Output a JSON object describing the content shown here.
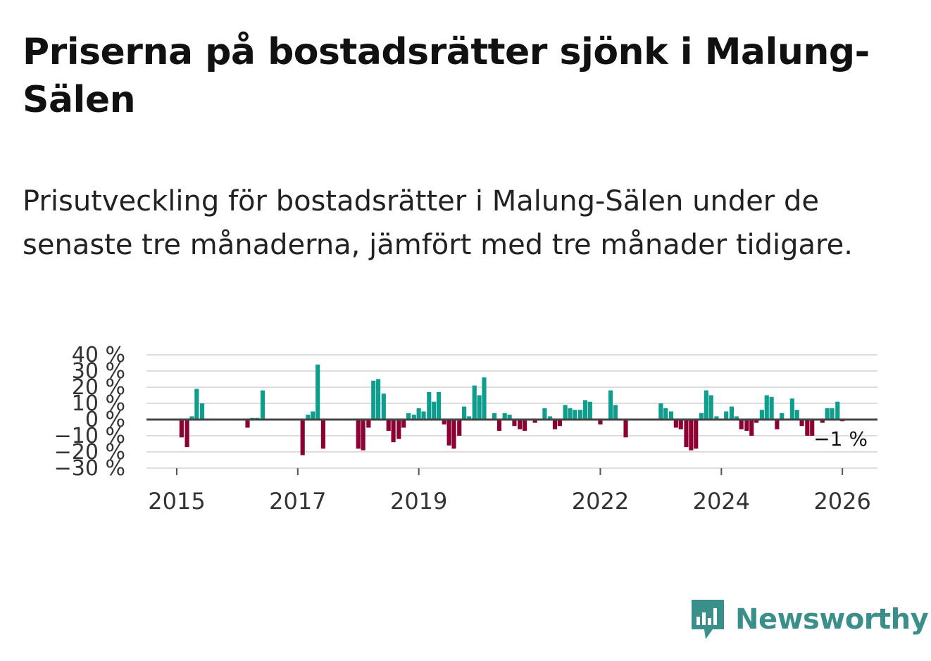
{
  "header": {
    "title": "Priserna på bostadsrätter sjönk i Malung-Sälen",
    "subtitle": "Prisutveckling för bostadsrätter i Malung-Sälen under de senaste tre månaderna, jämfört med tre månader tidigare."
  },
  "brand": {
    "name": "Newsworthy",
    "color": "#3a8f8a"
  },
  "colors": {
    "positive": "#0f9e8e",
    "negative": "#8c0033",
    "grid": "#dddddd",
    "zero": "#444444"
  },
  "chart_data": {
    "type": "bar",
    "ylim": [
      -30,
      40
    ],
    "y_ticks": [
      40,
      30,
      20,
      10,
      0,
      -10,
      -20,
      -30
    ],
    "y_tick_labels": [
      "40 %",
      "30 %",
      "20 %",
      "10 %",
      "0 %",
      "−10 %",
      "−20 %",
      "−30 %"
    ],
    "x_ticks": [
      2015,
      2017,
      2019,
      2022,
      2024,
      2026
    ],
    "x_tick_labels": [
      "2015",
      "2017",
      "2019",
      "2022",
      "2024",
      "2026"
    ],
    "x_range": [
      2014.5,
      2026.58
    ],
    "last_value_label": "−1 %",
    "series": [
      {
        "x": 2015.08,
        "y": -11
      },
      {
        "x": 2015.17,
        "y": -17
      },
      {
        "x": 2015.25,
        "y": 2
      },
      {
        "x": 2015.33,
        "y": 19
      },
      {
        "x": 2015.42,
        "y": 10
      },
      {
        "x": 2016.17,
        "y": -5
      },
      {
        "x": 2016.25,
        "y": 1
      },
      {
        "x": 2016.33,
        "y": 1
      },
      {
        "x": 2016.42,
        "y": 18
      },
      {
        "x": 2017.08,
        "y": -22
      },
      {
        "x": 2017.17,
        "y": 3
      },
      {
        "x": 2017.25,
        "y": 5
      },
      {
        "x": 2017.33,
        "y": 34
      },
      {
        "x": 2017.42,
        "y": -18
      },
      {
        "x": 2018.0,
        "y": -18
      },
      {
        "x": 2018.08,
        "y": -19
      },
      {
        "x": 2018.17,
        "y": -5
      },
      {
        "x": 2018.25,
        "y": 24
      },
      {
        "x": 2018.33,
        "y": 25
      },
      {
        "x": 2018.42,
        "y": 16
      },
      {
        "x": 2018.5,
        "y": -7
      },
      {
        "x": 2018.58,
        "y": -14
      },
      {
        "x": 2018.67,
        "y": -12
      },
      {
        "x": 2018.75,
        "y": -5
      },
      {
        "x": 2018.83,
        "y": 4
      },
      {
        "x": 2018.92,
        "y": 3
      },
      {
        "x": 2019.0,
        "y": 7
      },
      {
        "x": 2019.08,
        "y": 5
      },
      {
        "x": 2019.17,
        "y": 17
      },
      {
        "x": 2019.25,
        "y": 11
      },
      {
        "x": 2019.33,
        "y": 17
      },
      {
        "x": 2019.42,
        "y": -3
      },
      {
        "x": 2019.5,
        "y": -16
      },
      {
        "x": 2019.58,
        "y": -18
      },
      {
        "x": 2019.67,
        "y": -10
      },
      {
        "x": 2019.75,
        "y": 8
      },
      {
        "x": 2019.83,
        "y": 2
      },
      {
        "x": 2019.92,
        "y": 21
      },
      {
        "x": 2020.0,
        "y": 15
      },
      {
        "x": 2020.08,
        "y": 26
      },
      {
        "x": 2020.25,
        "y": 4
      },
      {
        "x": 2020.33,
        "y": -7
      },
      {
        "x": 2020.42,
        "y": 4
      },
      {
        "x": 2020.5,
        "y": 3
      },
      {
        "x": 2020.58,
        "y": -4
      },
      {
        "x": 2020.67,
        "y": -6
      },
      {
        "x": 2020.75,
        "y": -7
      },
      {
        "x": 2020.92,
        "y": -2
      },
      {
        "x": 2021.08,
        "y": 7
      },
      {
        "x": 2021.17,
        "y": 2
      },
      {
        "x": 2021.25,
        "y": -6
      },
      {
        "x": 2021.33,
        "y": -4
      },
      {
        "x": 2021.42,
        "y": 9
      },
      {
        "x": 2021.5,
        "y": 7
      },
      {
        "x": 2021.58,
        "y": 6
      },
      {
        "x": 2021.67,
        "y": 6
      },
      {
        "x": 2021.75,
        "y": 12
      },
      {
        "x": 2021.83,
        "y": 11
      },
      {
        "x": 2022.0,
        "y": -3
      },
      {
        "x": 2022.17,
        "y": 18
      },
      {
        "x": 2022.25,
        "y": 9
      },
      {
        "x": 2022.42,
        "y": -11
      },
      {
        "x": 2023.0,
        "y": 10
      },
      {
        "x": 2023.08,
        "y": 7
      },
      {
        "x": 2023.17,
        "y": 5
      },
      {
        "x": 2023.25,
        "y": -5
      },
      {
        "x": 2023.33,
        "y": -6
      },
      {
        "x": 2023.42,
        "y": -17
      },
      {
        "x": 2023.5,
        "y": -19
      },
      {
        "x": 2023.58,
        "y": -18
      },
      {
        "x": 2023.67,
        "y": 4
      },
      {
        "x": 2023.75,
        "y": 18
      },
      {
        "x": 2023.83,
        "y": 15
      },
      {
        "x": 2023.92,
        "y": 2
      },
      {
        "x": 2024.08,
        "y": 5
      },
      {
        "x": 2024.17,
        "y": 8
      },
      {
        "x": 2024.25,
        "y": 2
      },
      {
        "x": 2024.33,
        "y": -6
      },
      {
        "x": 2024.42,
        "y": -7
      },
      {
        "x": 2024.5,
        "y": -10
      },
      {
        "x": 2024.58,
        "y": -2
      },
      {
        "x": 2024.67,
        "y": 6
      },
      {
        "x": 2024.75,
        "y": 15
      },
      {
        "x": 2024.83,
        "y": 14
      },
      {
        "x": 2024.92,
        "y": -6
      },
      {
        "x": 2025.0,
        "y": 4
      },
      {
        "x": 2025.17,
        "y": 13
      },
      {
        "x": 2025.25,
        "y": 6
      },
      {
        "x": 2025.33,
        "y": -4
      },
      {
        "x": 2025.42,
        "y": -10
      },
      {
        "x": 2025.5,
        "y": -10
      },
      {
        "x": 2025.67,
        "y": -2
      },
      {
        "x": 2025.75,
        "y": 7
      },
      {
        "x": 2025.83,
        "y": 7
      },
      {
        "x": 2025.92,
        "y": 11
      },
      {
        "x": 2026.0,
        "y": -1
      }
    ]
  }
}
